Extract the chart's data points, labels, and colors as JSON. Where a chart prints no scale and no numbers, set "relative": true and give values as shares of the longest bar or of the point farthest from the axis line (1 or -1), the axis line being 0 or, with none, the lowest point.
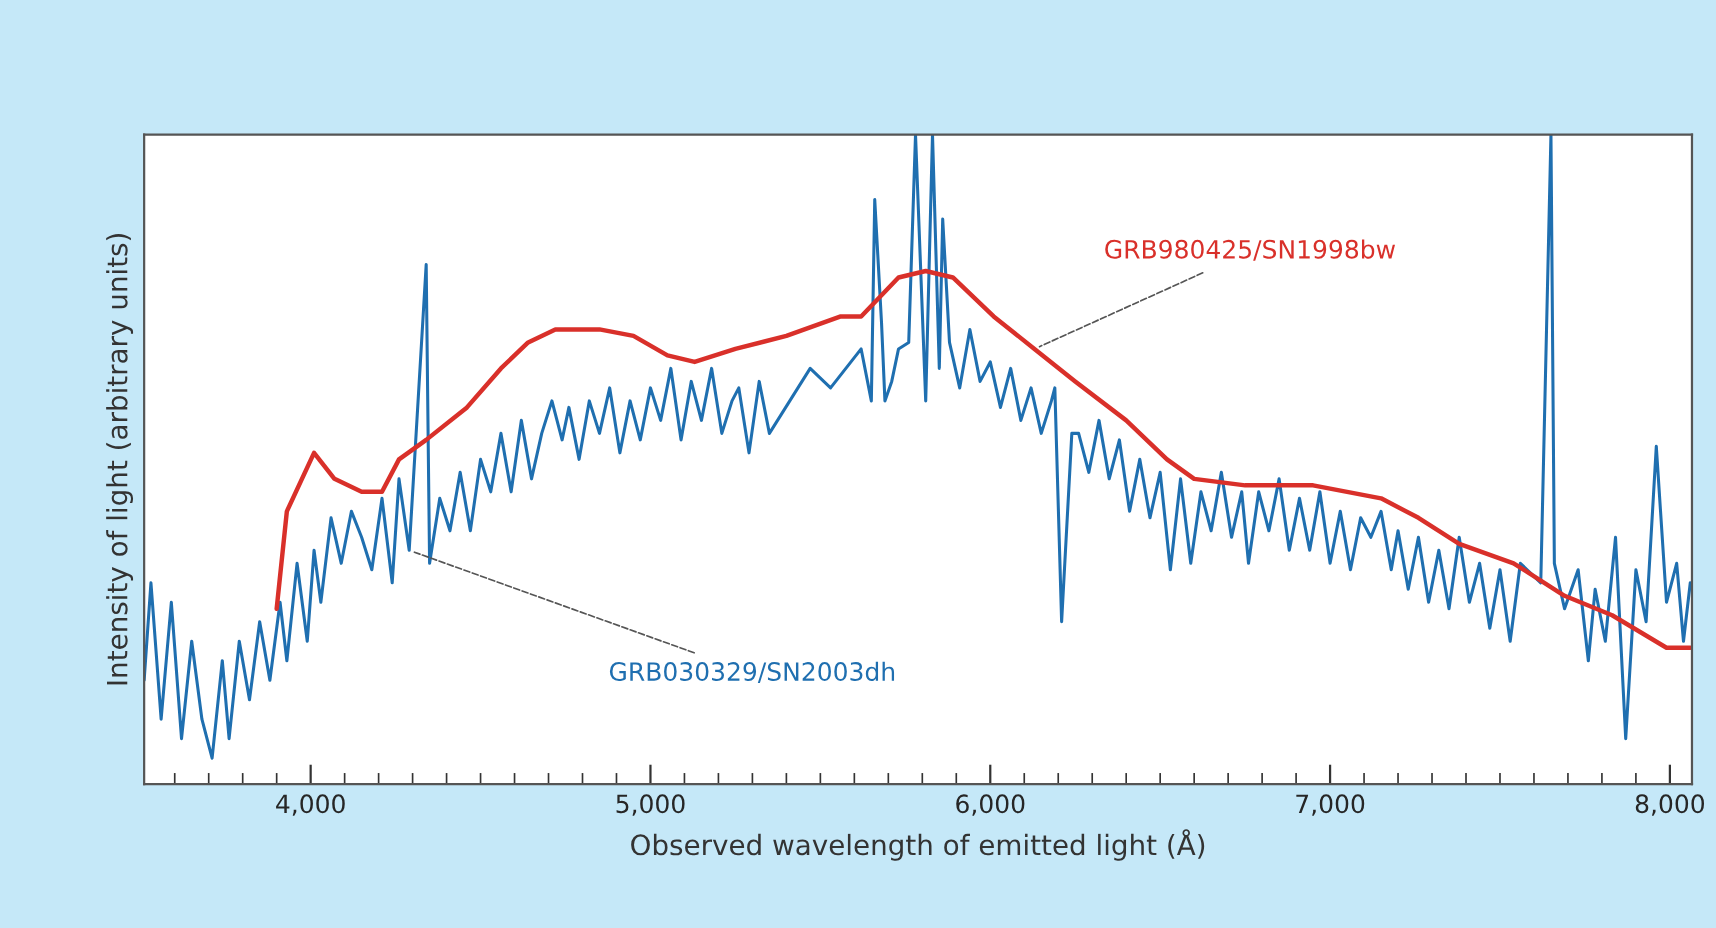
{
  "chart_data": {
    "type": "line",
    "relative": true,
    "xlabel": "Observed wavelength of emitted light (Å)",
    "ylabel": "Intensity of light (arbitrary units)",
    "xlim": [
      3510,
      8065
    ],
    "xticks": [
      {
        "value": 3600,
        "label": null
      },
      {
        "value": 3700,
        "label": null
      },
      {
        "value": 3800,
        "label": null
      },
      {
        "value": 3900,
        "label": null
      },
      {
        "value": 4000,
        "label": "4,000"
      },
      {
        "value": 4100,
        "label": null
      },
      {
        "value": 4200,
        "label": null
      },
      {
        "value": 4300,
        "label": null
      },
      {
        "value": 4400,
        "label": null
      },
      {
        "value": 4500,
        "label": null
      },
      {
        "value": 4600,
        "label": null
      },
      {
        "value": 4700,
        "label": null
      },
      {
        "value": 4800,
        "label": null
      },
      {
        "value": 4900,
        "label": null
      },
      {
        "value": 5000,
        "label": "5,000"
      },
      {
        "value": 5100,
        "label": null
      },
      {
        "value": 5200,
        "label": null
      },
      {
        "value": 5300,
        "label": null
      },
      {
        "value": 5400,
        "label": null
      },
      {
        "value": 5500,
        "label": null
      },
      {
        "value": 5600,
        "label": null
      },
      {
        "value": 5700,
        "label": null
      },
      {
        "value": 5800,
        "label": null
      },
      {
        "value": 5900,
        "label": null
      },
      {
        "value": 6000,
        "label": "6,000"
      },
      {
        "value": 6100,
        "label": null
      },
      {
        "value": 6200,
        "label": null
      },
      {
        "value": 6300,
        "label": null
      },
      {
        "value": 6400,
        "label": null
      },
      {
        "value": 6500,
        "label": null
      },
      {
        "value": 6600,
        "label": null
      },
      {
        "value": 6700,
        "label": null
      },
      {
        "value": 6800,
        "label": null
      },
      {
        "value": 6900,
        "label": null
      },
      {
        "value": 7000,
        "label": "7,000"
      },
      {
        "value": 7100,
        "label": null
      },
      {
        "value": 7200,
        "label": null
      },
      {
        "value": 7300,
        "label": null
      },
      {
        "value": 7400,
        "label": null
      },
      {
        "value": 7500,
        "label": null
      },
      {
        "value": 7600,
        "label": null
      },
      {
        "value": 7700,
        "label": null
      },
      {
        "value": 7800,
        "label": null
      },
      {
        "value": 7900,
        "label": null
      },
      {
        "value": 8000,
        "label": "8,000"
      }
    ],
    "grid": false,
    "legend": false,
    "line_style": "solid",
    "series": [
      {
        "name": "GRB030329/SN2003dh",
        "color": "#1f6fb0",
        "x": [
          3510,
          3530,
          3560,
          3590,
          3620,
          3650,
          3680,
          3710,
          3740,
          3760,
          3790,
          3820,
          3850,
          3880,
          3910,
          3930,
          3960,
          3990,
          4010,
          4030,
          4060,
          4090,
          4120,
          4150,
          4180,
          4210,
          4240,
          4260,
          4290,
          4340,
          4350,
          4380,
          4410,
          4440,
          4470,
          4500,
          4530,
          4560,
          4590,
          4620,
          4650,
          4680,
          4710,
          4740,
          4760,
          4790,
          4820,
          4850,
          4880,
          4910,
          4940,
          4970,
          5000,
          5030,
          5060,
          5090,
          5120,
          5150,
          5180,
          5210,
          5240,
          5260,
          5290,
          5320,
          5350,
          5410,
          5470,
          5530,
          5590,
          5620,
          5650,
          5660,
          5680,
          5690,
          5710,
          5730,
          5760,
          5780,
          5810,
          5830,
          5850,
          5860,
          5880,
          5910,
          5940,
          5970,
          6000,
          6030,
          6060,
          6090,
          6120,
          6150,
          6180,
          6190,
          6210,
          6240,
          6260,
          6290,
          6320,
          6350,
          6380,
          6410,
          6440,
          6470,
          6500,
          6530,
          6560,
          6590,
          6620,
          6650,
          6680,
          6710,
          6740,
          6760,
          6790,
          6820,
          6850,
          6880,
          6910,
          6940,
          6970,
          7000,
          7030,
          7060,
          7090,
          7120,
          7150,
          7180,
          7200,
          7230,
          7260,
          7290,
          7320,
          7350,
          7380,
          7410,
          7440,
          7470,
          7500,
          7530,
          7560,
          7620,
          7650,
          7660,
          7690,
          7730,
          7760,
          7780,
          7810,
          7840,
          7870,
          7900,
          7930,
          7960,
          7990,
          8020,
          8040,
          8060
        ],
        "values": [
          0.16,
          0.31,
          0.1,
          0.28,
          0.07,
          0.22,
          0.1,
          0.04,
          0.19,
          0.07,
          0.22,
          0.13,
          0.25,
          0.16,
          0.28,
          0.19,
          0.34,
          0.22,
          0.36,
          0.28,
          0.41,
          0.34,
          0.42,
          0.38,
          0.33,
          0.44,
          0.31,
          0.47,
          0.36,
          0.8,
          0.34,
          0.44,
          0.39,
          0.48,
          0.39,
          0.5,
          0.45,
          0.54,
          0.45,
          0.56,
          0.47,
          0.54,
          0.59,
          0.53,
          0.58,
          0.5,
          0.59,
          0.54,
          0.61,
          0.51,
          0.59,
          0.53,
          0.61,
          0.56,
          0.64,
          0.53,
          0.62,
          0.56,
          0.64,
          0.54,
          0.59,
          0.61,
          0.51,
          0.62,
          0.54,
          0.59,
          0.64,
          0.61,
          0.65,
          0.67,
          0.59,
          0.9,
          0.71,
          0.59,
          0.62,
          0.67,
          0.68,
          1.0,
          0.59,
          1.0,
          0.64,
          0.87,
          0.68,
          0.61,
          0.7,
          0.62,
          0.65,
          0.58,
          0.64,
          0.56,
          0.61,
          0.54,
          0.59,
          0.61,
          0.25,
          0.54,
          0.54,
          0.48,
          0.56,
          0.47,
          0.53,
          0.42,
          0.5,
          0.41,
          0.48,
          0.33,
          0.47,
          0.34,
          0.45,
          0.39,
          0.48,
          0.38,
          0.45,
          0.34,
          0.45,
          0.39,
          0.47,
          0.36,
          0.44,
          0.36,
          0.45,
          0.34,
          0.42,
          0.33,
          0.41,
          0.38,
          0.42,
          0.33,
          0.39,
          0.3,
          0.38,
          0.28,
          0.36,
          0.27,
          0.38,
          0.28,
          0.34,
          0.24,
          0.33,
          0.22,
          0.34,
          0.31,
          1.0,
          0.34,
          0.27,
          0.33,
          0.19,
          0.3,
          0.22,
          0.38,
          0.07,
          0.33,
          0.25,
          0.52,
          0.28,
          0.34,
          0.22,
          0.31
        ]
      },
      {
        "name": "GRB980425/SN1998bw",
        "color": "#d9302a",
        "x": [
          3900,
          3930,
          4010,
          4070,
          4150,
          4210,
          4260,
          4340,
          4460,
          4560,
          4640,
          4720,
          4850,
          4950,
          5050,
          5130,
          5250,
          5400,
          5560,
          5620,
          5730,
          5810,
          5890,
          6010,
          6130,
          6250,
          6400,
          6520,
          6600,
          6750,
          6950,
          7150,
          7260,
          7380,
          7540,
          7690,
          7830,
          7990,
          8060
        ],
        "values": [
          0.27,
          0.42,
          0.51,
          0.47,
          0.45,
          0.45,
          0.5,
          0.53,
          0.58,
          0.64,
          0.68,
          0.7,
          0.7,
          0.69,
          0.66,
          0.65,
          0.67,
          0.69,
          0.72,
          0.72,
          0.78,
          0.79,
          0.78,
          0.72,
          0.67,
          0.62,
          0.56,
          0.5,
          0.47,
          0.46,
          0.46,
          0.44,
          0.41,
          0.37,
          0.34,
          0.29,
          0.26,
          0.21,
          0.21
        ]
      }
    ]
  }
}
